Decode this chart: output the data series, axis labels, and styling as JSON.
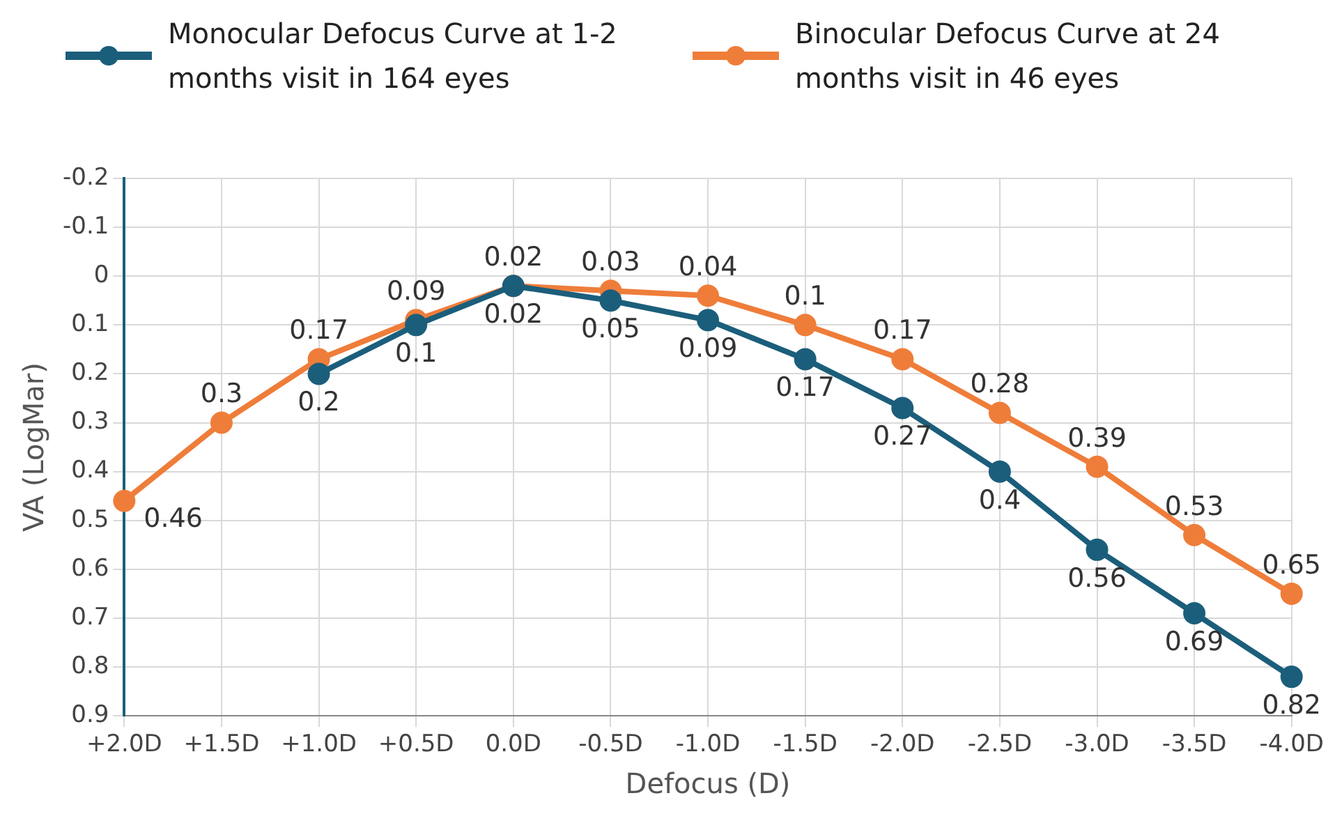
{
  "chart_data": {
    "type": "line",
    "xlabel": "Defocus (D)",
    "ylabel": "VA (LogMar)",
    "categories": [
      "+2.0D",
      "+1.5D",
      "+1.0D",
      "+0.5D",
      "0.0D",
      "-0.5D",
      "-1.0D",
      "-1.5D",
      "-2.0D",
      "-2.5D",
      "-3.0D",
      "-3.5D",
      "-4.0D"
    ],
    "series": [
      {
        "name": "Monocular Defocus Curve at 1-2 months visit in 164 eyes",
        "color": "#1b5e7b",
        "values": [
          null,
          null,
          0.2,
          0.1,
          0.02,
          0.05,
          0.09,
          0.17,
          0.27,
          0.4,
          0.56,
          0.69,
          0.82
        ]
      },
      {
        "name": "Binocular Defocus Curve at 24 months visit in 46 eyes",
        "color": "#ef7d3a",
        "values": [
          0.46,
          0.3,
          0.17,
          0.09,
          0.02,
          0.03,
          0.04,
          0.1,
          0.17,
          0.28,
          0.39,
          0.53,
          0.65
        ]
      }
    ],
    "ylim": [
      0.9,
      -0.2
    ],
    "yticks": [
      -0.2,
      -0.1,
      0,
      0.1,
      0.2,
      0.3,
      0.4,
      0.5,
      0.6,
      0.7,
      0.8,
      0.9
    ],
    "grid": true,
    "legend": "top",
    "marker": "circle",
    "line_style": "solid",
    "data_labels": true
  }
}
